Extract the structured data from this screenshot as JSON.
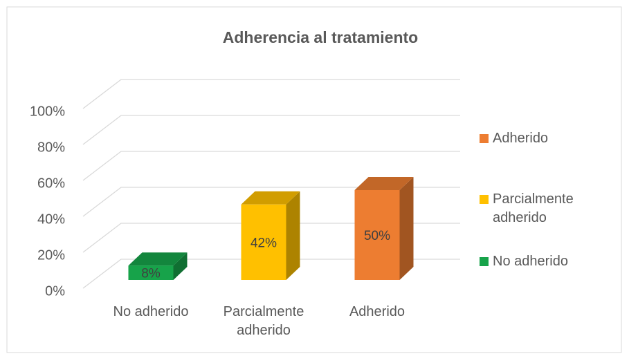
{
  "chart_data": {
    "type": "bar3d",
    "title": "Adherencia al tratamiento",
    "categories": [
      "No adherido",
      "Parcialmente adherido",
      "Adherido"
    ],
    "values": [
      8,
      42,
      50
    ],
    "value_labels": [
      "8%",
      "42%",
      "50%"
    ],
    "colors": [
      "#17a34a",
      "#ffc000",
      "#ed7d31"
    ],
    "ylim": [
      0,
      100
    ],
    "yticks": [
      {
        "value": 0,
        "label": "0%"
      },
      {
        "value": 20,
        "label": "20%"
      },
      {
        "value": 40,
        "label": "40%"
      },
      {
        "value": 60,
        "label": "60%"
      },
      {
        "value": 80,
        "label": "80%"
      },
      {
        "value": 100,
        "label": "100%"
      }
    ],
    "grid": true,
    "legend": "right"
  }
}
